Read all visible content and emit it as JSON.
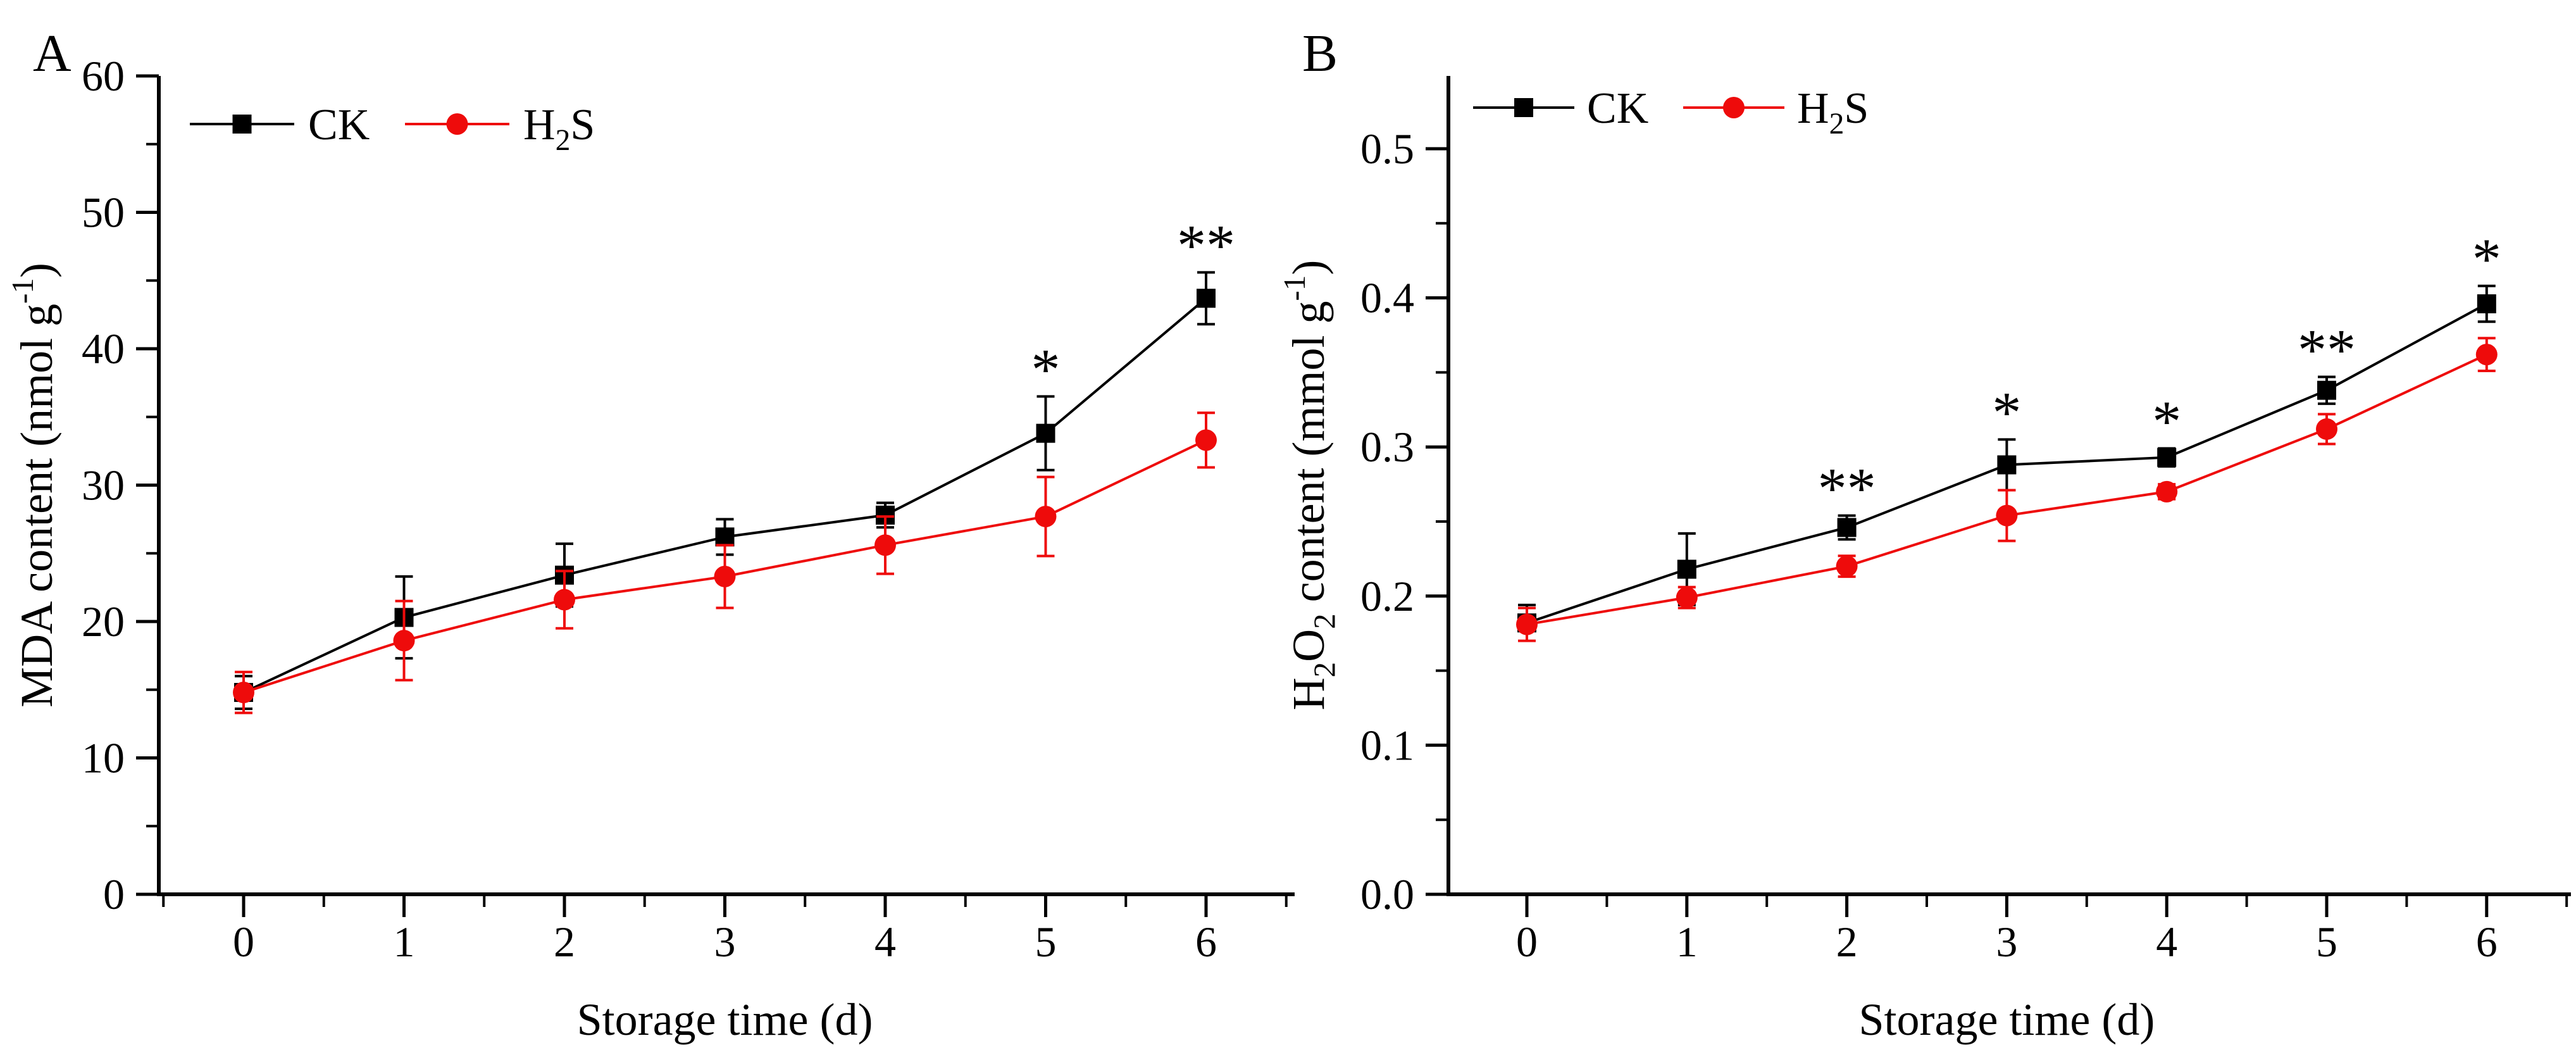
{
  "figure": {
    "background": "#ffffff",
    "black": "#000000",
    "red": "#ee0b0b"
  },
  "chart_data": [
    {
      "type": "line",
      "panel_label": "A",
      "xlabel": "Storage time (d)",
      "ylabel": "MDA content (nmol g-1)",
      "ylabel_parts": [
        {
          "t": "MDA content (nmol g"
        },
        {
          "t": "-1",
          "sup": true
        },
        {
          "t": ")"
        }
      ],
      "x": [
        0,
        1,
        2,
        3,
        4,
        5,
        6
      ],
      "xtick_labels": [
        "0",
        "1",
        "2",
        "3",
        "4",
        "5",
        "6"
      ],
      "ytick_values": [
        0,
        10,
        20,
        30,
        40,
        50,
        60
      ],
      "ytick_labels": [
        "0",
        "10",
        "20",
        "30",
        "40",
        "50",
        "60"
      ],
      "ylim": [
        0,
        60
      ],
      "grid": false,
      "legend_position": "top-left",
      "series": [
        {
          "name": "CK",
          "name_parts": [
            {
              "t": "CK"
            }
          ],
          "color": "#000000",
          "marker": "square",
          "values": [
            14.8,
            20.3,
            23.4,
            26.2,
            27.8,
            33.8,
            43.7
          ],
          "errors": [
            1.2,
            3.0,
            2.3,
            1.3,
            0.9,
            2.7,
            1.9
          ]
        },
        {
          "name": "H2S",
          "name_parts": [
            {
              "t": "H"
            },
            {
              "t": "2",
              "sub": true
            },
            {
              "t": "S"
            }
          ],
          "color": "#ee0b0b",
          "marker": "circle",
          "values": [
            14.8,
            18.6,
            21.6,
            23.3,
            25.6,
            27.7,
            33.3
          ],
          "errors": [
            1.5,
            2.9,
            2.1,
            2.3,
            2.1,
            2.9,
            2.0
          ]
        }
      ],
      "significance": [
        {
          "x": 5,
          "label": "*"
        },
        {
          "x": 6,
          "label": "**"
        }
      ]
    },
    {
      "type": "line",
      "panel_label": "B",
      "xlabel": "Storage time (d)",
      "ylabel": "H2O2 content (mmol g-1)",
      "ylabel_parts": [
        {
          "t": "H"
        },
        {
          "t": "2",
          "sub": true
        },
        {
          "t": "O"
        },
        {
          "t": "2",
          "sub": true
        },
        {
          "t": " content (mmol g"
        },
        {
          "t": "-1",
          "sup": true
        },
        {
          "t": ")"
        }
      ],
      "x": [
        0,
        1,
        2,
        3,
        4,
        5,
        6
      ],
      "xtick_labels": [
        "0",
        "1",
        "2",
        "3",
        "4",
        "5",
        "6"
      ],
      "ytick_values": [
        0,
        0.1,
        0.2,
        0.3,
        0.4,
        0.5
      ],
      "ytick_labels": [
        "0.0",
        "0.1",
        "0.2",
        "0.3",
        "0.4",
        "0.5"
      ],
      "ylim": [
        0,
        0.55
      ],
      "grid": false,
      "legend_position": "top-left",
      "series": [
        {
          "name": "CK",
          "name_parts": [
            {
              "t": "CK"
            }
          ],
          "color": "#000000",
          "marker": "square",
          "values": [
            0.182,
            0.218,
            0.246,
            0.288,
            0.293,
            0.338,
            0.396
          ],
          "errors": [
            0.012,
            0.024,
            0.008,
            0.017,
            0.006,
            0.009,
            0.012
          ]
        },
        {
          "name": "H2S",
          "name_parts": [
            {
              "t": "H"
            },
            {
              "t": "2",
              "sub": true
            },
            {
              "t": "S"
            }
          ],
          "color": "#ee0b0b",
          "marker": "circle",
          "values": [
            0.181,
            0.199,
            0.22,
            0.254,
            0.27,
            0.312,
            0.362
          ],
          "errors": [
            0.011,
            0.007,
            0.007,
            0.017,
            0.005,
            0.01,
            0.011
          ]
        }
      ],
      "significance": [
        {
          "x": 2,
          "label": "**"
        },
        {
          "x": 3,
          "label": "*"
        },
        {
          "x": 4,
          "label": "*"
        },
        {
          "x": 5,
          "label": "**"
        },
        {
          "x": 6,
          "label": "*"
        }
      ]
    }
  ]
}
